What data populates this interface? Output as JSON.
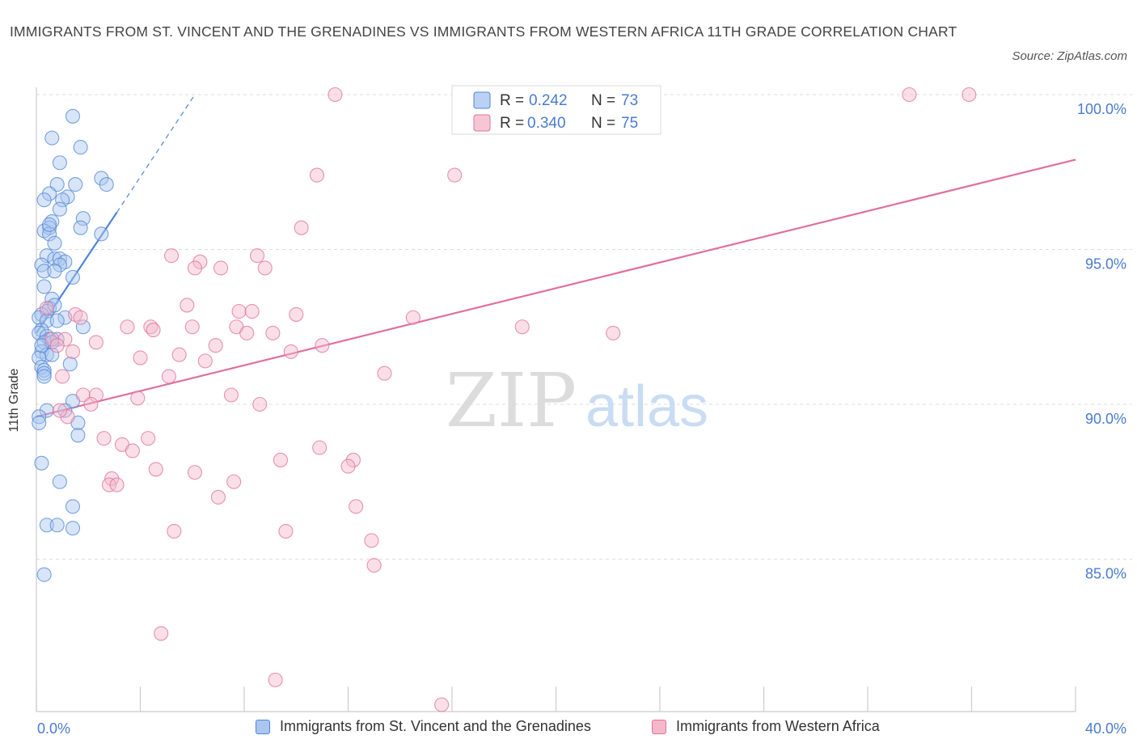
{
  "title": "IMMIGRANTS FROM ST. VINCENT AND THE GRENADINES VS IMMIGRANTS FROM WESTERN AFRICA 11TH GRADE CORRELATION CHART",
  "source": "Source: ZipAtlas.com",
  "watermark": {
    "zip": "ZIP",
    "atlas": "atlas"
  },
  "colors": {
    "blue": "#4f86d6",
    "blue_fill": "#a9c6f0",
    "pink": "#e0709a",
    "pink_fill": "#f5b8cb",
    "axis_label": "#4a7bd0"
  },
  "legend_stats": [
    {
      "r_label": "R =",
      "r_value": "0.242",
      "n_label": "N =",
      "n_value": "73"
    },
    {
      "r_label": "R =",
      "r_value": "0.340",
      "n_label": "N =",
      "n_value": "75"
    }
  ],
  "chart_data": {
    "type": "scatter",
    "title": "IMMIGRANTS FROM ST. VINCENT AND THE GRENADINES VS IMMIGRANTS FROM WESTERN AFRICA 11TH GRADE CORRELATION CHART",
    "xlabel": "",
    "ylabel": "11th Grade",
    "xlim": [
      0,
      40
    ],
    "ylim": [
      80.0,
      101.0
    ],
    "x_tick_labels": [
      "0.0%",
      "40.0%"
    ],
    "y_ticks": [
      85,
      90,
      95,
      100
    ],
    "y_tick_labels": [
      "85.0%",
      "90.0%",
      "95.0%",
      "100.0%"
    ],
    "grid": true,
    "legend_position": "bottom",
    "series": [
      {
        "name": "Immigrants from St. Vincent and the Grenadines",
        "color": "#4f86d6",
        "trend": {
          "x": [
            0.0,
            3.1
          ],
          "y": [
            92.3,
            96.2
          ],
          "dashed_extension_to": [
            6.1,
            100.0
          ]
        },
        "points": [
          [
            1.4,
            99.3
          ],
          [
            0.6,
            98.6
          ],
          [
            1.7,
            98.3
          ],
          [
            0.9,
            97.8
          ],
          [
            2.5,
            97.3
          ],
          [
            2.7,
            97.1
          ],
          [
            0.8,
            97.1
          ],
          [
            1.5,
            97.1
          ],
          [
            0.5,
            96.8
          ],
          [
            1.2,
            96.7
          ],
          [
            0.3,
            96.6
          ],
          [
            1.0,
            96.6
          ],
          [
            0.9,
            96.3
          ],
          [
            1.8,
            96.0
          ],
          [
            0.6,
            95.9
          ],
          [
            0.5,
            95.7
          ],
          [
            1.7,
            95.7
          ],
          [
            0.3,
            95.6
          ],
          [
            0.5,
            95.5
          ],
          [
            2.5,
            95.5
          ],
          [
            0.7,
            95.2
          ],
          [
            0.4,
            94.8
          ],
          [
            0.7,
            94.7
          ],
          [
            0.9,
            94.7
          ],
          [
            1.1,
            94.6
          ],
          [
            0.2,
            94.5
          ],
          [
            0.9,
            94.5
          ],
          [
            0.3,
            94.3
          ],
          [
            0.7,
            94.3
          ],
          [
            1.4,
            94.1
          ],
          [
            0.3,
            93.8
          ],
          [
            0.6,
            93.4
          ],
          [
            0.5,
            93.1
          ],
          [
            0.4,
            93.0
          ],
          [
            0.2,
            92.9
          ],
          [
            0.1,
            92.8
          ],
          [
            1.1,
            92.8
          ],
          [
            0.4,
            92.7
          ],
          [
            0.8,
            92.7
          ],
          [
            1.8,
            92.5
          ],
          [
            0.2,
            92.4
          ],
          [
            0.1,
            92.3
          ],
          [
            0.4,
            92.2
          ],
          [
            0.5,
            92.1
          ],
          [
            0.8,
            92.1
          ],
          [
            0.3,
            92.0
          ],
          [
            0.6,
            92.0
          ],
          [
            0.2,
            91.7
          ],
          [
            0.4,
            91.6
          ],
          [
            0.6,
            91.6
          ],
          [
            0.1,
            91.5
          ],
          [
            1.3,
            91.3
          ],
          [
            0.2,
            91.2
          ],
          [
            0.3,
            91.1
          ],
          [
            0.3,
            91.0
          ],
          [
            0.3,
            90.9
          ],
          [
            1.4,
            90.1
          ],
          [
            1.1,
            89.8
          ],
          [
            0.4,
            89.8
          ],
          [
            0.1,
            89.6
          ],
          [
            0.1,
            89.4
          ],
          [
            1.6,
            89.4
          ],
          [
            1.6,
            89.0
          ],
          [
            0.2,
            88.1
          ],
          [
            0.9,
            87.5
          ],
          [
            1.4,
            86.7
          ],
          [
            0.4,
            86.1
          ],
          [
            0.8,
            86.1
          ],
          [
            1.4,
            86.0
          ],
          [
            0.3,
            84.5
          ],
          [
            0.5,
            95.8
          ],
          [
            0.7,
            93.2
          ],
          [
            0.2,
            91.9
          ]
        ]
      },
      {
        "name": "Immigrants from Western Africa",
        "color": "#e0709a",
        "trend": {
          "x": [
            0.0,
            40.0
          ],
          "y": [
            89.6,
            97.9
          ]
        },
        "points": [
          [
            11.5,
            100.0
          ],
          [
            16.8,
            100.0
          ],
          [
            33.6,
            100.0
          ],
          [
            35.9,
            100.0
          ],
          [
            10.8,
            97.4
          ],
          [
            16.1,
            97.4
          ],
          [
            10.2,
            95.7
          ],
          [
            5.2,
            94.8
          ],
          [
            8.5,
            94.8
          ],
          [
            6.3,
            94.6
          ],
          [
            6.1,
            94.4
          ],
          [
            7.1,
            94.4
          ],
          [
            8.8,
            94.4
          ],
          [
            5.8,
            93.2
          ],
          [
            0.4,
            93.1
          ],
          [
            7.8,
            93.0
          ],
          [
            8.3,
            93.0
          ],
          [
            1.5,
            92.9
          ],
          [
            10.0,
            92.9
          ],
          [
            1.7,
            92.8
          ],
          [
            14.5,
            92.8
          ],
          [
            3.5,
            92.5
          ],
          [
            4.4,
            92.5
          ],
          [
            6.0,
            92.5
          ],
          [
            7.7,
            92.5
          ],
          [
            18.7,
            92.5
          ],
          [
            4.5,
            92.4
          ],
          [
            8.1,
            92.3
          ],
          [
            9.1,
            92.3
          ],
          [
            22.2,
            92.3
          ],
          [
            0.6,
            92.1
          ],
          [
            1.1,
            92.1
          ],
          [
            2.3,
            92.0
          ],
          [
            0.8,
            91.9
          ],
          [
            6.9,
            91.9
          ],
          [
            11.0,
            91.9
          ],
          [
            1.4,
            91.7
          ],
          [
            9.8,
            91.7
          ],
          [
            5.5,
            91.6
          ],
          [
            4.0,
            91.5
          ],
          [
            6.5,
            91.4
          ],
          [
            13.4,
            91.0
          ],
          [
            5.1,
            90.9
          ],
          [
            1.0,
            90.9
          ],
          [
            1.8,
            90.3
          ],
          [
            2.3,
            90.3
          ],
          [
            7.5,
            90.3
          ],
          [
            3.9,
            90.2
          ],
          [
            2.1,
            90.0
          ],
          [
            8.6,
            90.0
          ],
          [
            1.2,
            89.6
          ],
          [
            2.6,
            88.9
          ],
          [
            4.3,
            88.9
          ],
          [
            3.3,
            88.7
          ],
          [
            10.9,
            88.6
          ],
          [
            3.7,
            88.5
          ],
          [
            9.4,
            88.2
          ],
          [
            12.2,
            88.2
          ],
          [
            12.0,
            88.0
          ],
          [
            4.6,
            87.9
          ],
          [
            6.1,
            87.8
          ],
          [
            2.9,
            87.6
          ],
          [
            7.6,
            87.5
          ],
          [
            2.8,
            87.4
          ],
          [
            3.1,
            87.4
          ],
          [
            7.0,
            87.0
          ],
          [
            12.3,
            86.7
          ],
          [
            5.3,
            85.9
          ],
          [
            9.6,
            85.9
          ],
          [
            12.9,
            85.6
          ],
          [
            13.0,
            84.8
          ],
          [
            4.8,
            82.6
          ],
          [
            9.2,
            81.1
          ],
          [
            15.6,
            80.3
          ],
          [
            0.9,
            89.8
          ]
        ]
      }
    ]
  }
}
